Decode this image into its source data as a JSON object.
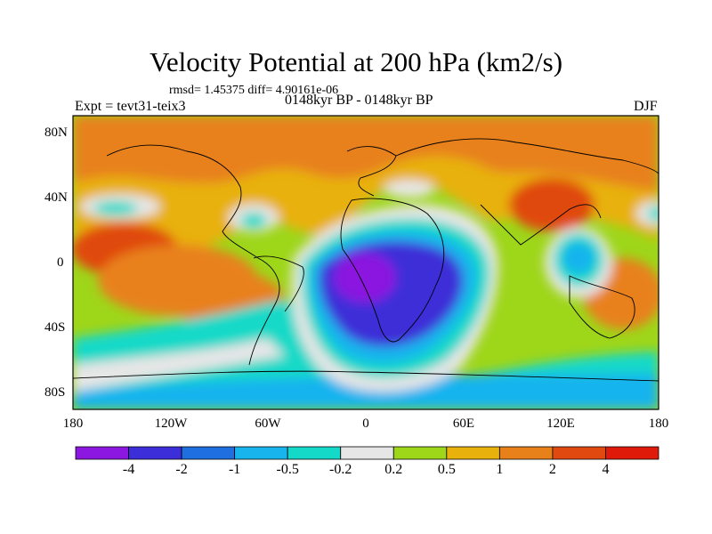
{
  "title": "Velocity Potential at 200 hPa (km2/s)",
  "stats": "rmsd= 1.45375 diff= 4.90161e-06",
  "experiment": "Expt = tevt31-teix3",
  "period": "0148kyr BP - 0148kyr BP",
  "season": "DJF",
  "lat_labels": [
    "80N",
    "40N",
    "0",
    "40S",
    "80S"
  ],
  "lon_labels": [
    "180",
    "120W",
    "60W",
    "0",
    "60E",
    "120E",
    "180"
  ],
  "colorbar": {
    "labels": [
      "-4",
      "-2",
      "-1",
      "-0.5",
      "-0.2",
      "0.2",
      "0.5",
      "1",
      "2",
      "4"
    ],
    "colors": [
      "#8b17e0",
      "#3c2ed8",
      "#1f6fe0",
      "#18b4ee",
      "#14d9c8",
      "#e6e6e6",
      "#9ed61a",
      "#e8b10c",
      "#e8811a",
      "#e04a10",
      "#e01a0a"
    ]
  }
}
